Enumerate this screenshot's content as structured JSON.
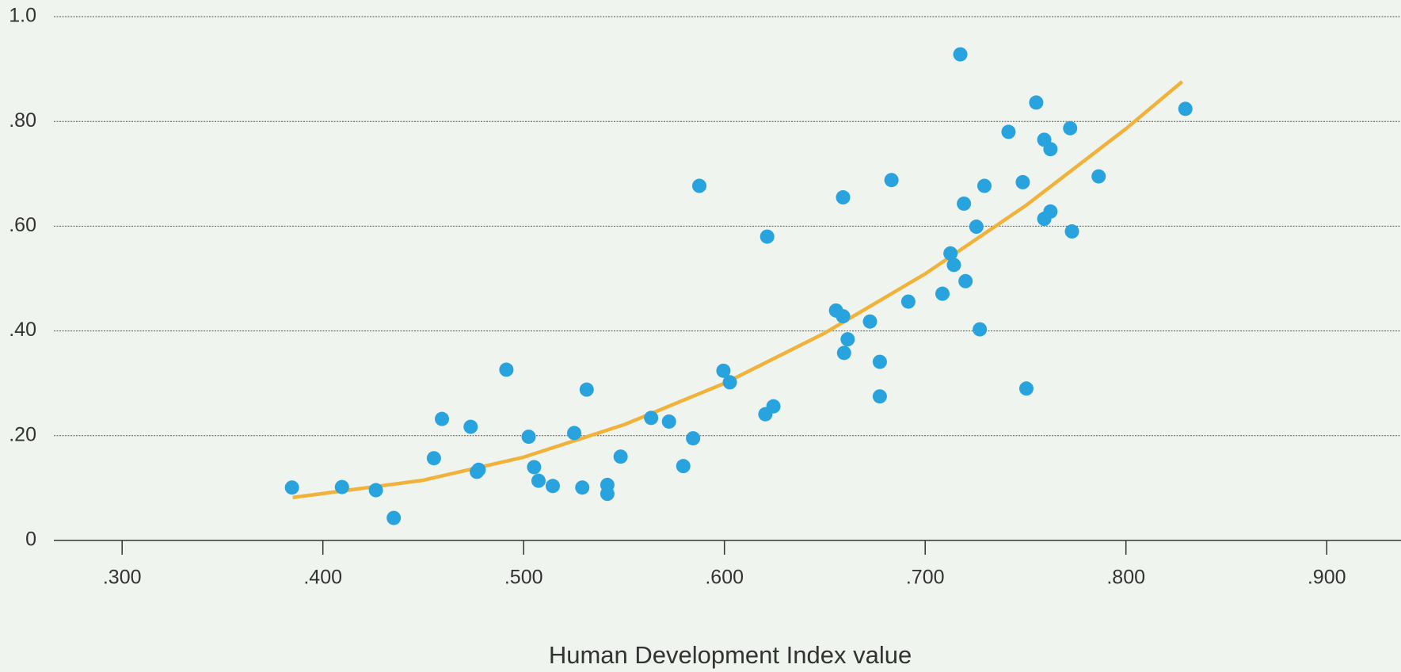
{
  "chart_data": {
    "type": "scatter",
    "xlabel": "Human Development Index value",
    "x": [
      0.3846,
      0.4095,
      0.4264,
      0.4353,
      0.4553,
      0.4593,
      0.4736,
      0.4767,
      0.4776,
      0.4914,
      0.5025,
      0.5052,
      0.5074,
      0.5145,
      0.5252,
      0.5292,
      0.5314,
      0.5417,
      0.5417,
      0.5483,
      0.5635,
      0.5724,
      0.5795,
      0.5844,
      0.5875,
      0.5995,
      0.6027,
      0.6204,
      0.6213,
      0.6244,
      0.6556,
      0.6591,
      0.6591,
      0.6596,
      0.6614,
      0.6725,
      0.6774,
      0.6774,
      0.6832,
      0.6916,
      0.7086,
      0.7126,
      0.7143,
      0.7175,
      0.7193,
      0.7201,
      0.7255,
      0.7272,
      0.7295,
      0.7415,
      0.7486,
      0.7504,
      0.7553,
      0.7593,
      0.7593,
      0.7624,
      0.7624,
      0.7722,
      0.7731,
      0.7864,
      0.8296
    ],
    "values": [
      0.101,
      0.102,
      0.096,
      0.043,
      0.157,
      0.232,
      0.217,
      0.131,
      0.135,
      0.326,
      0.198,
      0.14,
      0.114,
      0.104,
      0.205,
      0.101,
      0.288,
      0.106,
      0.089,
      0.16,
      0.234,
      0.227,
      0.142,
      0.195,
      0.677,
      0.324,
      0.302,
      0.241,
      0.58,
      0.256,
      0.439,
      0.428,
      0.655,
      0.358,
      0.384,
      0.418,
      0.341,
      0.275,
      0.688,
      0.456,
      0.471,
      0.548,
      0.526,
      0.928,
      0.643,
      0.495,
      0.599,
      0.403,
      0.677,
      0.78,
      0.684,
      0.29,
      0.836,
      0.765,
      0.614,
      0.747,
      0.628,
      0.787,
      0.59,
      0.695,
      0.824
    ],
    "color": "#29a3dd",
    "trend": {
      "x": [
        0.385,
        0.45,
        0.5,
        0.55,
        0.6,
        0.65,
        0.7,
        0.75,
        0.8,
        0.828
      ],
      "values": [
        0.082,
        0.115,
        0.159,
        0.221,
        0.3,
        0.396,
        0.509,
        0.639,
        0.786,
        0.876
      ],
      "color": "#f0b23a"
    },
    "xlim": [
      0.266,
      0.937
    ],
    "ylim": [
      0,
      1.0
    ],
    "xticks": [
      {
        "value": 0.3,
        "label": ".300"
      },
      {
        "value": 0.4,
        "label": ".400"
      },
      {
        "value": 0.5,
        "label": ".500"
      },
      {
        "value": 0.6,
        "label": ".600"
      },
      {
        "value": 0.7,
        "label": ".700"
      },
      {
        "value": 0.8,
        "label": ".800"
      },
      {
        "value": 0.9,
        "label": ".900"
      }
    ],
    "yticks": [
      0,
      {
        "value": 0.2,
        "label": ".20"
      },
      {
        "value": 0.4,
        "label": ".40"
      },
      {
        "value": 0.6,
        "label": ".60"
      },
      {
        "value": 0.8,
        "label": ".80"
      },
      {
        "value": 1.0,
        "label": "1.0"
      }
    ],
    "grid": true
  }
}
